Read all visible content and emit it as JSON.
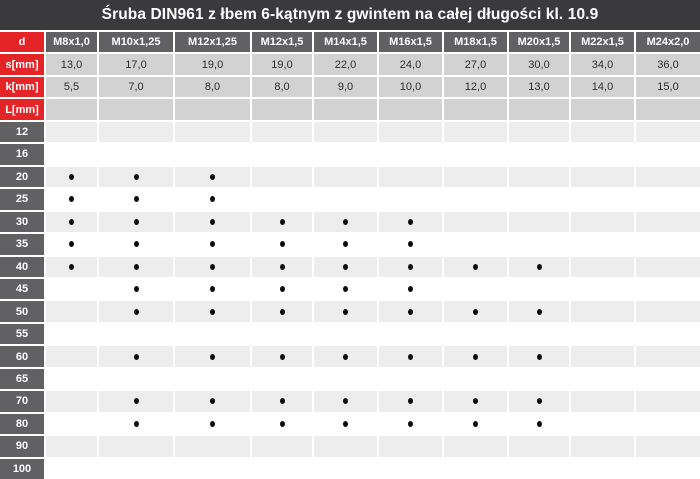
{
  "title": "Śruba DIN961 z łbem 6-kątnym z gwintem na całej długości kl. 10.9",
  "colors": {
    "title_bg": "#3a3a3c",
    "red": "#e52428",
    "label_gray": "#616164",
    "spec_bg": "#d2d2d3",
    "stripe_light": "#ededee",
    "stripe_white": "#ffffff",
    "text_dark": "#2d2d2f",
    "grid_line": "#ffffff",
    "dot": "#0c0c0e"
  },
  "table": {
    "corner_label": "d",
    "columns": [
      "M8x1,0",
      "M10x1,25",
      "M12x1,25",
      "M12x1,5",
      "M14x1,5",
      "M16x1,5",
      "M18x1,5",
      "M20x1,5",
      "M22x1,5",
      "M24x2,0"
    ],
    "spec_rows": [
      {
        "label": "s[mm]",
        "values": [
          "13,0",
          "17,0",
          "19,0",
          "19,0",
          "22,0",
          "24,0",
          "27,0",
          "30,0",
          "34,0",
          "36,0"
        ]
      },
      {
        "label": "k[mm]",
        "values": [
          "5,5",
          "7,0",
          "8,0",
          "8,0",
          "9,0",
          "10,0",
          "12,0",
          "13,0",
          "14,0",
          "15,0"
        ]
      },
      {
        "label": "L[mm]",
        "values": [
          "",
          "",
          "",
          "",
          "",
          "",
          "",
          "",
          "",
          ""
        ]
      }
    ],
    "length_rows": [
      {
        "label": "12",
        "dots": [
          0,
          0,
          0,
          0,
          0,
          0,
          0,
          0,
          0,
          0
        ]
      },
      {
        "label": "16",
        "dots": [
          0,
          0,
          0,
          0,
          0,
          0,
          0,
          0,
          0,
          0
        ]
      },
      {
        "label": "20",
        "dots": [
          1,
          1,
          1,
          0,
          0,
          0,
          0,
          0,
          0,
          0
        ]
      },
      {
        "label": "25",
        "dots": [
          1,
          1,
          1,
          0,
          0,
          0,
          0,
          0,
          0,
          0
        ]
      },
      {
        "label": "30",
        "dots": [
          1,
          1,
          1,
          1,
          1,
          1,
          0,
          0,
          0,
          0
        ]
      },
      {
        "label": "35",
        "dots": [
          1,
          1,
          1,
          1,
          1,
          1,
          0,
          0,
          0,
          0
        ]
      },
      {
        "label": "40",
        "dots": [
          1,
          1,
          1,
          1,
          1,
          1,
          1,
          1,
          0,
          0
        ]
      },
      {
        "label": "45",
        "dots": [
          0,
          1,
          1,
          1,
          1,
          1,
          0,
          0,
          0,
          0
        ]
      },
      {
        "label": "50",
        "dots": [
          0,
          1,
          1,
          1,
          1,
          1,
          1,
          1,
          0,
          0
        ]
      },
      {
        "label": "55",
        "dots": [
          0,
          0,
          0,
          0,
          0,
          0,
          0,
          0,
          0,
          0
        ]
      },
      {
        "label": "60",
        "dots": [
          0,
          1,
          1,
          1,
          1,
          1,
          1,
          1,
          0,
          0
        ]
      },
      {
        "label": "65",
        "dots": [
          0,
          0,
          0,
          0,
          0,
          0,
          0,
          0,
          0,
          0
        ]
      },
      {
        "label": "70",
        "dots": [
          0,
          1,
          1,
          1,
          1,
          1,
          1,
          1,
          0,
          0
        ]
      },
      {
        "label": "80",
        "dots": [
          0,
          1,
          1,
          1,
          1,
          1,
          1,
          1,
          0,
          0
        ]
      },
      {
        "label": "90",
        "dots": [
          0,
          0,
          0,
          0,
          0,
          0,
          0,
          0,
          0,
          0
        ]
      },
      {
        "label": "100",
        "dots": [
          0,
          0,
          0,
          0,
          0,
          0,
          0,
          0,
          0,
          0
        ]
      }
    ]
  }
}
